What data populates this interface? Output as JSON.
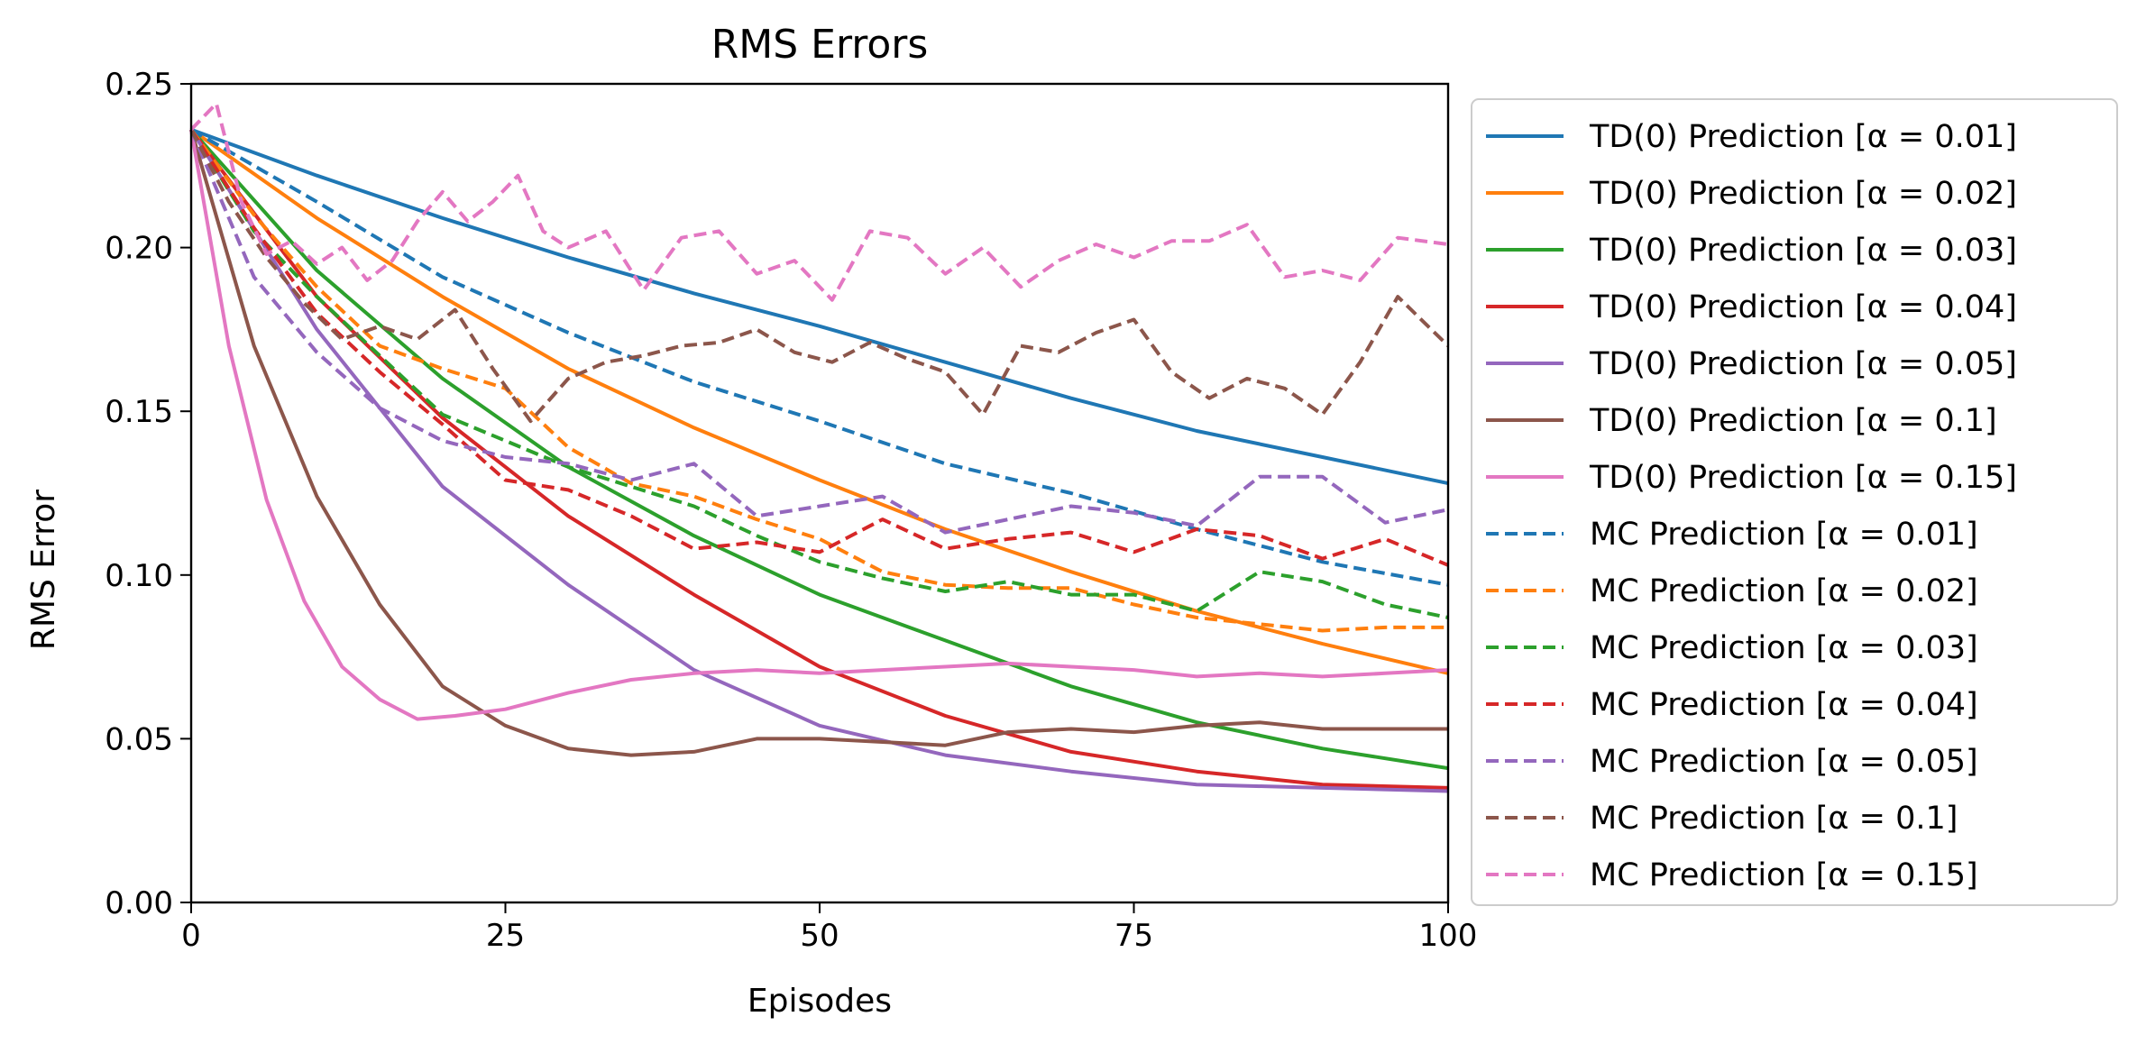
{
  "chart_data": {
    "type": "line",
    "title": "RMS Errors",
    "xlabel": "Episodes",
    "ylabel": "RMS Error",
    "xlim": [
      0,
      100
    ],
    "ylim": [
      0,
      0.25
    ],
    "xticks": [
      0,
      25,
      50,
      75,
      100
    ],
    "yticks": [
      0.0,
      0.05,
      0.1,
      0.15,
      0.2,
      0.25
    ],
    "ytick_labels": [
      "0.00",
      "0.05",
      "0.10",
      "0.15",
      "0.20",
      "0.25"
    ],
    "grid": false,
    "legend_position": "outside right",
    "series": [
      {
        "name": "TD(0) Prediction [α = 0.01]",
        "color": "#1f77b4",
        "style": "solid",
        "x": [
          0,
          10,
          20,
          30,
          40,
          50,
          60,
          70,
          80,
          90,
          100
        ],
        "y": [
          0.236,
          0.222,
          0.209,
          0.197,
          0.186,
          0.176,
          0.165,
          0.154,
          0.144,
          0.136,
          0.128
        ]
      },
      {
        "name": "TD(0) Prediction [α = 0.02]",
        "color": "#ff7f0e",
        "style": "solid",
        "x": [
          0,
          10,
          20,
          30,
          40,
          50,
          60,
          70,
          80,
          90,
          100
        ],
        "y": [
          0.236,
          0.209,
          0.185,
          0.163,
          0.145,
          0.129,
          0.114,
          0.101,
          0.089,
          0.079,
          0.07
        ]
      },
      {
        "name": "TD(0) Prediction [α = 0.03]",
        "color": "#2ca02c",
        "style": "solid",
        "x": [
          0,
          10,
          20,
          30,
          40,
          50,
          60,
          70,
          80,
          90,
          100
        ],
        "y": [
          0.236,
          0.193,
          0.16,
          0.133,
          0.112,
          0.094,
          0.08,
          0.066,
          0.055,
          0.047,
          0.041
        ]
      },
      {
        "name": "TD(0) Prediction [α = 0.04]",
        "color": "#d62728",
        "style": "solid",
        "x": [
          0,
          10,
          20,
          30,
          40,
          50,
          60,
          70,
          80,
          90,
          100
        ],
        "y": [
          0.236,
          0.185,
          0.148,
          0.118,
          0.094,
          0.072,
          0.057,
          0.046,
          0.04,
          0.036,
          0.035
        ]
      },
      {
        "name": "TD(0) Prediction [α = 0.05]",
        "color": "#9467bd",
        "style": "solid",
        "x": [
          0,
          10,
          20,
          30,
          40,
          50,
          60,
          70,
          80,
          90,
          100
        ],
        "y": [
          0.236,
          0.175,
          0.127,
          0.097,
          0.071,
          0.054,
          0.045,
          0.04,
          0.036,
          0.035,
          0.034
        ]
      },
      {
        "name": "TD(0) Prediction [α = 0.1]",
        "color": "#8c564b",
        "style": "solid",
        "x": [
          0,
          5,
          10,
          15,
          20,
          25,
          30,
          35,
          40,
          45,
          50,
          55,
          60,
          65,
          70,
          75,
          80,
          85,
          90,
          95,
          100
        ],
        "y": [
          0.236,
          0.17,
          0.124,
          0.091,
          0.066,
          0.054,
          0.047,
          0.045,
          0.046,
          0.05,
          0.05,
          0.049,
          0.048,
          0.052,
          0.053,
          0.052,
          0.054,
          0.055,
          0.053,
          0.053,
          0.053
        ]
      },
      {
        "name": "TD(0) Prediction [α = 0.15]",
        "color": "#e377c2",
        "style": "solid",
        "x": [
          0,
          3,
          6,
          9,
          12,
          15,
          18,
          21,
          25,
          30,
          35,
          40,
          45,
          50,
          55,
          60,
          65,
          70,
          75,
          80,
          85,
          90,
          95,
          100
        ],
        "y": [
          0.236,
          0.17,
          0.123,
          0.092,
          0.072,
          0.062,
          0.056,
          0.057,
          0.059,
          0.064,
          0.068,
          0.07,
          0.071,
          0.07,
          0.071,
          0.072,
          0.073,
          0.072,
          0.071,
          0.069,
          0.07,
          0.069,
          0.07,
          0.071
        ]
      },
      {
        "name": "MC Prediction [α = 0.01]",
        "color": "#1f77b4",
        "style": "dashed",
        "x": [
          0,
          10,
          20,
          30,
          40,
          50,
          60,
          70,
          80,
          90,
          100
        ],
        "y": [
          0.236,
          0.214,
          0.191,
          0.174,
          0.159,
          0.147,
          0.134,
          0.125,
          0.114,
          0.104,
          0.097
        ]
      },
      {
        "name": "MC Prediction [α = 0.02]",
        "color": "#ff7f0e",
        "style": "dashed",
        "x": [
          0,
          5,
          10,
          15,
          20,
          25,
          30,
          35,
          40,
          45,
          50,
          55,
          60,
          65,
          70,
          75,
          80,
          85,
          90,
          95,
          100
        ],
        "y": [
          0.236,
          0.21,
          0.188,
          0.17,
          0.163,
          0.157,
          0.139,
          0.128,
          0.124,
          0.117,
          0.111,
          0.101,
          0.097,
          0.096,
          0.096,
          0.091,
          0.087,
          0.085,
          0.083,
          0.084,
          0.084
        ]
      },
      {
        "name": "MC Prediction [α = 0.03]",
        "color": "#2ca02c",
        "style": "dashed",
        "x": [
          0,
          5,
          10,
          15,
          20,
          25,
          30,
          35,
          40,
          45,
          50,
          55,
          60,
          65,
          70,
          75,
          80,
          85,
          90,
          95,
          100
        ],
        "y": [
          0.236,
          0.205,
          0.185,
          0.167,
          0.149,
          0.141,
          0.133,
          0.127,
          0.121,
          0.112,
          0.104,
          0.099,
          0.095,
          0.098,
          0.094,
          0.094,
          0.089,
          0.101,
          0.098,
          0.091,
          0.087
        ]
      },
      {
        "name": "MC Prediction [α = 0.04]",
        "color": "#d62728",
        "style": "dashed",
        "x": [
          0,
          5,
          10,
          15,
          20,
          25,
          30,
          35,
          40,
          45,
          50,
          55,
          60,
          65,
          70,
          75,
          80,
          85,
          90,
          95,
          100
        ],
        "y": [
          0.236,
          0.206,
          0.18,
          0.162,
          0.146,
          0.129,
          0.126,
          0.118,
          0.108,
          0.11,
          0.107,
          0.117,
          0.108,
          0.111,
          0.113,
          0.107,
          0.114,
          0.112,
          0.105,
          0.111,
          0.103
        ]
      },
      {
        "name": "MC Prediction [α = 0.05]",
        "color": "#9467bd",
        "style": "dashed",
        "x": [
          0,
          5,
          10,
          15,
          20,
          25,
          30,
          35,
          40,
          45,
          50,
          55,
          60,
          65,
          70,
          75,
          80,
          85,
          90,
          95,
          100
        ],
        "y": [
          0.236,
          0.191,
          0.168,
          0.151,
          0.141,
          0.136,
          0.134,
          0.129,
          0.134,
          0.118,
          0.121,
          0.124,
          0.113,
          0.117,
          0.121,
          0.119,
          0.115,
          0.13,
          0.13,
          0.116,
          0.12
        ]
      },
      {
        "name": "MC Prediction [α = 0.1]",
        "color": "#8c564b",
        "style": "dashed",
        "x": [
          0,
          3,
          6,
          9,
          12,
          15,
          18,
          21,
          24,
          27,
          30,
          33,
          36,
          39,
          42,
          45,
          48,
          51,
          54,
          57,
          60,
          63,
          66,
          69,
          72,
          75,
          78,
          81,
          84,
          87,
          90,
          93,
          96,
          100
        ],
        "y": [
          0.236,
          0.214,
          0.197,
          0.183,
          0.172,
          0.176,
          0.172,
          0.181,
          0.163,
          0.147,
          0.16,
          0.165,
          0.167,
          0.17,
          0.171,
          0.175,
          0.168,
          0.165,
          0.171,
          0.166,
          0.162,
          0.149,
          0.17,
          0.168,
          0.174,
          0.178,
          0.162,
          0.154,
          0.16,
          0.157,
          0.149,
          0.165,
          0.185,
          0.17
        ]
      },
      {
        "name": "MC Prediction [α = 0.15]",
        "color": "#e377c2",
        "style": "dashed",
        "x": [
          0,
          2,
          4,
          6,
          8,
          10,
          12,
          14,
          16,
          18,
          20,
          22,
          24,
          26,
          28,
          30,
          33,
          36,
          39,
          42,
          45,
          48,
          51,
          54,
          57,
          60,
          63,
          66,
          69,
          72,
          75,
          78,
          81,
          84,
          87,
          90,
          93,
          96,
          100
        ],
        "y": [
          0.236,
          0.244,
          0.214,
          0.198,
          0.202,
          0.195,
          0.2,
          0.19,
          0.196,
          0.208,
          0.217,
          0.208,
          0.214,
          0.222,
          0.205,
          0.2,
          0.205,
          0.187,
          0.203,
          0.205,
          0.192,
          0.196,
          0.184,
          0.205,
          0.203,
          0.192,
          0.2,
          0.188,
          0.196,
          0.201,
          0.197,
          0.202,
          0.202,
          0.207,
          0.191,
          0.193,
          0.19,
          0.203,
          0.201
        ]
      }
    ]
  }
}
